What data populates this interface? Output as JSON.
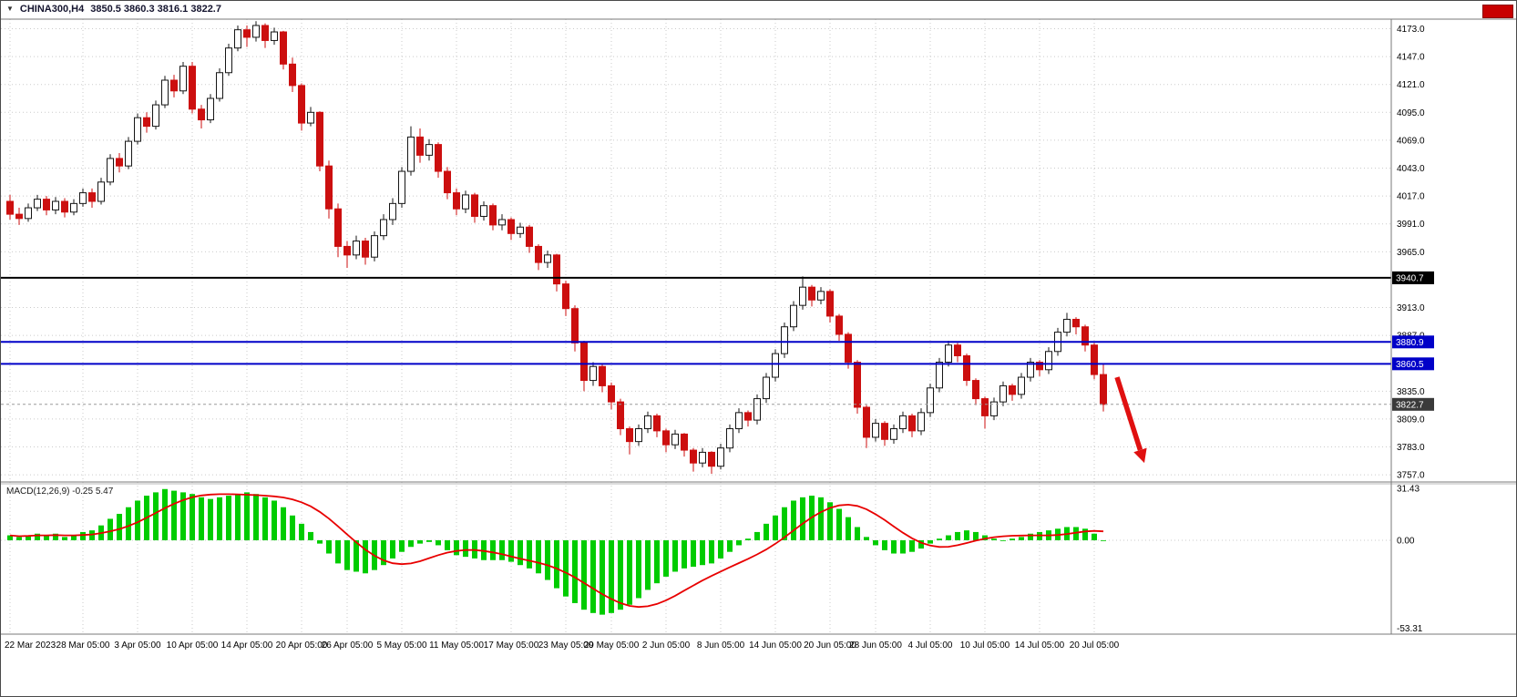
{
  "window": {
    "expand_icon": "▼",
    "title_symbol": "CHINA300,H4",
    "title_ohlc": "3850.5 3860.3 3816.1 3822.7"
  },
  "colors": {
    "bear": "#cc0f0f",
    "bull_fill": "#ffffff",
    "bull_border": "#151515",
    "grid": "#cbcbcb",
    "frame": "#7a7a7a",
    "axis_text": "#000000",
    "badge_text": "#ffffff",
    "macd_hist": "#00cc00",
    "macd_signal": "#e80000",
    "red_button": "#c80000"
  },
  "chart_data": {
    "type": "candlestick",
    "symbol": "CHINA300",
    "timeframe": "H4",
    "title": "CHINA300,H4 3850.5 3860.3 3816.1 3822.7",
    "last_ohlc": {
      "open": 3850.5,
      "high": 3860.3,
      "low": 3816.1,
      "close": 3822.7
    },
    "y_axis": {
      "ticks": [
        4173.0,
        4147.0,
        4121.0,
        4095.0,
        4069.0,
        4043.0,
        4017.0,
        3991.0,
        3965.0,
        3913.0,
        3887.0,
        3835.0,
        3809.0,
        3783.0,
        3757.0
      ],
      "min": 3750,
      "max": 4181,
      "grid": true
    },
    "levels": [
      {
        "value": 3940.7,
        "label": "3940.7",
        "color": "#000000",
        "badge": "#000000",
        "width": 2,
        "dashed": false
      },
      {
        "value": 3880.9,
        "label": "3880.9",
        "color": "#0000c8",
        "badge": "#0000c8",
        "width": 2,
        "dashed": false
      },
      {
        "value": 3860.5,
        "label": "3860.5",
        "color": "#0000c8",
        "badge": "#0000c8",
        "width": 2,
        "dashed": false
      },
      {
        "value": 3822.7,
        "label": "3822.7",
        "color": "#9a9a9a",
        "badge": "#3a3a3a",
        "width": 1,
        "dashed": true
      }
    ],
    "x_labels": [
      {
        "text": "22 Mar 2023",
        "i": 0
      },
      {
        "text": "28 Mar 05:00",
        "i": 8
      },
      {
        "text": "3 Apr 05:00",
        "i": 14
      },
      {
        "text": "10 Apr 05:00",
        "i": 20
      },
      {
        "text": "14 Apr 05:00",
        "i": 26
      },
      {
        "text": "20 Apr 05:00",
        "i": 32
      },
      {
        "text": "26 Apr 05:00",
        "i": 37
      },
      {
        "text": "5 May 05:00",
        "i": 43
      },
      {
        "text": "11 May 05:00",
        "i": 49
      },
      {
        "text": "17 May 05:00",
        "i": 55
      },
      {
        "text": "23 May 05:00",
        "i": 61
      },
      {
        "text": "29 May 05:00",
        "i": 66
      },
      {
        "text": "2 Jun 05:00",
        "i": 72
      },
      {
        "text": "8 Jun 05:00",
        "i": 78
      },
      {
        "text": "14 Jun 05:00",
        "i": 84
      },
      {
        "text": "20 Jun 05:00",
        "i": 90
      },
      {
        "text": "28 Jun 05:00",
        "i": 95
      },
      {
        "text": "4 Jul 05:00",
        "i": 101
      },
      {
        "text": "10 Jul 05:00",
        "i": 107
      },
      {
        "text": "14 Jul 05:00",
        "i": 113
      },
      {
        "text": "20 Jul 05:00",
        "i": 119
      }
    ],
    "candles": [
      [
        4012,
        4018,
        3995,
        4000
      ],
      [
        4000,
        4006,
        3990,
        3996
      ],
      [
        3996,
        4010,
        3993,
        4006
      ],
      [
        4006,
        4018,
        4003,
        4014
      ],
      [
        4014,
        4017,
        3999,
        4004
      ],
      [
        4004,
        4016,
        4000,
        4012
      ],
      [
        4012,
        4015,
        3997,
        4002
      ],
      [
        4002,
        4014,
        3999,
        4010
      ],
      [
        4010,
        4024,
        4007,
        4020
      ],
      [
        4020,
        4024,
        4006,
        4012
      ],
      [
        4012,
        4034,
        4009,
        4030
      ],
      [
        4030,
        4056,
        4027,
        4052
      ],
      [
        4052,
        4057,
        4039,
        4045
      ],
      [
        4045,
        4072,
        4042,
        4068
      ],
      [
        4068,
        4094,
        4065,
        4090
      ],
      [
        4090,
        4095,
        4076,
        4082
      ],
      [
        4082,
        4106,
        4079,
        4102
      ],
      [
        4102,
        4129,
        4099,
        4125
      ],
      [
        4125,
        4130,
        4109,
        4115
      ],
      [
        4115,
        4142,
        4112,
        4138
      ],
      [
        4138,
        4142,
        4094,
        4098
      ],
      [
        4098,
        4102,
        4080,
        4088
      ],
      [
        4088,
        4112,
        4085,
        4108
      ],
      [
        4108,
        4136,
        4105,
        4132
      ],
      [
        4132,
        4159,
        4129,
        4155
      ],
      [
        4155,
        4176,
        4152,
        4172
      ],
      [
        4172,
        4176,
        4156,
        4165
      ],
      [
        4165,
        4180,
        4161,
        4176
      ],
      [
        4176,
        4178,
        4155,
        4162
      ],
      [
        4162,
        4174,
        4158,
        4170
      ],
      [
        4170,
        4171,
        4135,
        4140
      ],
      [
        4140,
        4146,
        4114,
        4120
      ],
      [
        4120,
        4122,
        4078,
        4085
      ],
      [
        4085,
        4100,
        4082,
        4095
      ],
      [
        4095,
        4096,
        4040,
        4045
      ],
      [
        4045,
        4050,
        3996,
        4005
      ],
      [
        4005,
        4010,
        3960,
        3970
      ],
      [
        3970,
        3975,
        3950,
        3962
      ],
      [
        3962,
        3980,
        3958,
        3975
      ],
      [
        3975,
        3978,
        3953,
        3960
      ],
      [
        3960,
        3984,
        3956,
        3980
      ],
      [
        3980,
        4000,
        3976,
        3995
      ],
      [
        3995,
        4015,
        3990,
        4010
      ],
      [
        4010,
        4044,
        4006,
        4040
      ],
      [
        4040,
        4082,
        4036,
        4072
      ],
      [
        4072,
        4080,
        4048,
        4055
      ],
      [
        4055,
        4070,
        4050,
        4065
      ],
      [
        4065,
        4067,
        4034,
        4040
      ],
      [
        4040,
        4044,
        4014,
        4020
      ],
      [
        4020,
        4024,
        3999,
        4005
      ],
      [
        4005,
        4022,
        4001,
        4018
      ],
      [
        4018,
        4020,
        3992,
        3998
      ],
      [
        3998,
        4012,
        3994,
        4008
      ],
      [
        4008,
        4010,
        3985,
        3990
      ],
      [
        3990,
        4000,
        3985,
        3995
      ],
      [
        3995,
        3997,
        3976,
        3982
      ],
      [
        3982,
        3992,
        3978,
        3988
      ],
      [
        3988,
        3990,
        3964,
        3970
      ],
      [
        3970,
        3972,
        3948,
        3955
      ],
      [
        3955,
        3966,
        3950,
        3962
      ],
      [
        3962,
        3963,
        3928,
        3935
      ],
      [
        3935,
        3938,
        3905,
        3912
      ],
      [
        3912,
        3915,
        3872,
        3880
      ],
      [
        3880,
        3882,
        3835,
        3845
      ],
      [
        3845,
        3862,
        3840,
        3858
      ],
      [
        3858,
        3860,
        3834,
        3840
      ],
      [
        3840,
        3843,
        3818,
        3825
      ],
      [
        3825,
        3828,
        3794,
        3800
      ],
      [
        3800,
        3802,
        3776,
        3788
      ],
      [
        3788,
        3804,
        3784,
        3800
      ],
      [
        3800,
        3816,
        3796,
        3812
      ],
      [
        3812,
        3814,
        3792,
        3798
      ],
      [
        3798,
        3800,
        3778,
        3785
      ],
      [
        3785,
        3799,
        3781,
        3795
      ],
      [
        3795,
        3796,
        3774,
        3780
      ],
      [
        3780,
        3782,
        3760,
        3768
      ],
      [
        3768,
        3782,
        3764,
        3778
      ],
      [
        3778,
        3779,
        3758,
        3765
      ],
      [
        3765,
        3786,
        3762,
        3782
      ],
      [
        3782,
        3804,
        3778,
        3800
      ],
      [
        3800,
        3819,
        3796,
        3815
      ],
      [
        3815,
        3817,
        3802,
        3808
      ],
      [
        3808,
        3832,
        3804,
        3828
      ],
      [
        3828,
        3852,
        3824,
        3848
      ],
      [
        3848,
        3874,
        3844,
        3870
      ],
      [
        3870,
        3899,
        3866,
        3895
      ],
      [
        3895,
        3919,
        3891,
        3915
      ],
      [
        3915,
        3942,
        3911,
        3932
      ],
      [
        3932,
        3934,
        3914,
        3920
      ],
      [
        3920,
        3932,
        3916,
        3928
      ],
      [
        3928,
        3930,
        3899,
        3905
      ],
      [
        3905,
        3907,
        3882,
        3888
      ],
      [
        3888,
        3890,
        3856,
        3862
      ],
      [
        3862,
        3864,
        3814,
        3820
      ],
      [
        3820,
        3822,
        3782,
        3792
      ],
      [
        3792,
        3809,
        3788,
        3805
      ],
      [
        3805,
        3807,
        3784,
        3790
      ],
      [
        3790,
        3804,
        3786,
        3800
      ],
      [
        3800,
        3816,
        3796,
        3812
      ],
      [
        3812,
        3814,
        3792,
        3798
      ],
      [
        3798,
        3819,
        3794,
        3815
      ],
      [
        3815,
        3842,
        3811,
        3838
      ],
      [
        3838,
        3866,
        3834,
        3862
      ],
      [
        3862,
        3882,
        3858,
        3878
      ],
      [
        3878,
        3880,
        3862,
        3868
      ],
      [
        3868,
        3870,
        3840,
        3845
      ],
      [
        3845,
        3847,
        3822,
        3828
      ],
      [
        3828,
        3830,
        3800,
        3812
      ],
      [
        3812,
        3829,
        3808,
        3825
      ],
      [
        3825,
        3844,
        3821,
        3840
      ],
      [
        3840,
        3842,
        3826,
        3832
      ],
      [
        3832,
        3852,
        3828,
        3848
      ],
      [
        3848,
        3866,
        3844,
        3862
      ],
      [
        3862,
        3864,
        3849,
        3855
      ],
      [
        3855,
        3876,
        3851,
        3872
      ],
      [
        3872,
        3894,
        3868,
        3890
      ],
      [
        3890,
        3908,
        3886,
        3902
      ],
      [
        3902,
        3904,
        3888,
        3895
      ],
      [
        3895,
        3897,
        3872,
        3878
      ],
      [
        3878,
        3880,
        3846,
        3850.5
      ],
      [
        3850.5,
        3860.3,
        3816.1,
        3822.7
      ]
    ],
    "macd": {
      "name": "MACD",
      "params": "12,26,9",
      "value": -0.25,
      "signal_value": 5.47,
      "label": "MACD(12,26,9) -0.25 5.47",
      "ticks": [
        31.43,
        0,
        -53.31
      ],
      "histogram": [
        3,
        2,
        3,
        4,
        3,
        4,
        2,
        3,
        5,
        6,
        9,
        13,
        16,
        20,
        24,
        27,
        29,
        31,
        30,
        29,
        28,
        26,
        25,
        26,
        27,
        28,
        29,
        28,
        26,
        24,
        20,
        15,
        10,
        5,
        -2,
        -8,
        -14,
        -18,
        -19,
        -20,
        -18,
        -15,
        -11,
        -7,
        -4,
        -2,
        -1,
        -3,
        -6,
        -9,
        -10,
        -11,
        -12,
        -12,
        -12,
        -13,
        -15,
        -17,
        -20,
        -24,
        -29,
        -34,
        -38,
        -42,
        -44,
        -45,
        -44,
        -42,
        -39,
        -35,
        -30,
        -26,
        -22,
        -19,
        -17,
        -16,
        -15,
        -14,
        -11,
        -7,
        -3,
        1,
        5,
        10,
        15,
        20,
        24,
        26,
        27,
        26,
        23,
        19,
        14,
        8,
        2,
        -3,
        -6,
        -8,
        -8,
        -7,
        -5,
        -2,
        1,
        3,
        5,
        6,
        5,
        3,
        1,
        0,
        1,
        2,
        4,
        5,
        6,
        7,
        8,
        8,
        7,
        4,
        -0.25
      ],
      "signal_period": 9
    },
    "annotation_arrow": {
      "from_index": 121.5,
      "from_price": 3848,
      "to_index": 124.5,
      "to_price": 3768,
      "color": "#e01010"
    }
  }
}
